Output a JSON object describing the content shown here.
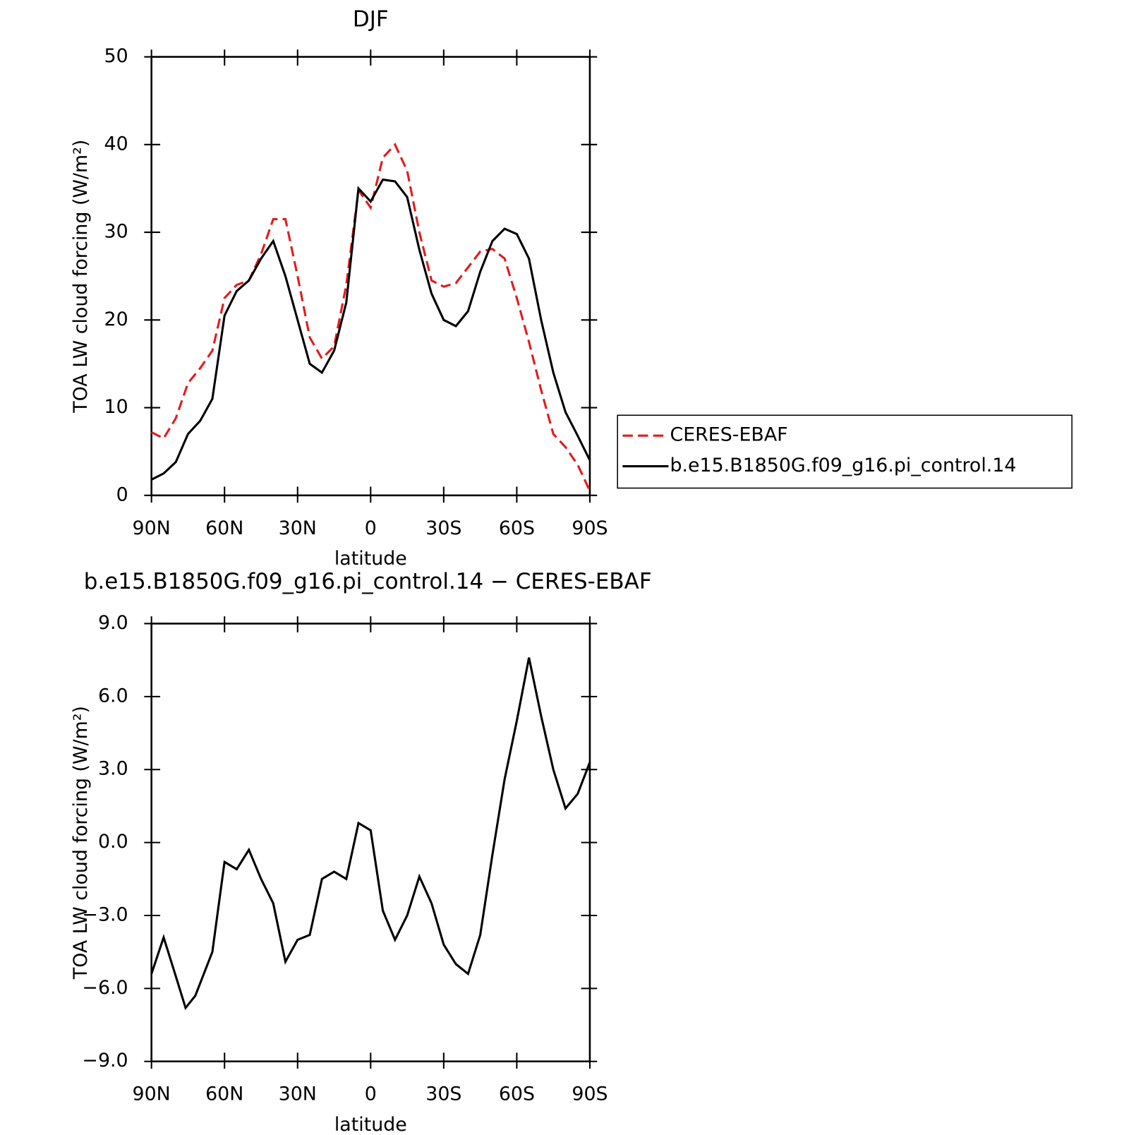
{
  "chart_data": [
    {
      "type": "line",
      "title": "DJF",
      "xlabel": "latitude",
      "ylabel": "TOA LW cloud forcing (W/m²)",
      "x": [
        90,
        85,
        80,
        75,
        70,
        65,
        60,
        55,
        50,
        45,
        40,
        35,
        30,
        25,
        20,
        15,
        10,
        5,
        0,
        -5,
        -10,
        -15,
        -20,
        -25,
        -30,
        -35,
        -40,
        -45,
        -50,
        -55,
        -60,
        -65,
        -70,
        -75,
        -80,
        -85,
        -90
      ],
      "series": [
        {
          "name": "CERES-EBAF",
          "color": "#e41a1c",
          "dash": true,
          "values": [
            7.2,
            6.5,
            8.8,
            12.8,
            14.5,
            16.5,
            22.5,
            24,
            24.5,
            27.5,
            31.5,
            31.5,
            25,
            18,
            15.6,
            17,
            24,
            34.8,
            32.8,
            38.5,
            40,
            37,
            30,
            24.5,
            23.8,
            24.2,
            26,
            27.8,
            28.1,
            27,
            22.5,
            17.5,
            12,
            7,
            5.5,
            3.5,
            0.5
          ]
        },
        {
          "name": "b.e15.B1850G.f09_g16.pi_control.14",
          "color": "#000000",
          "dash": false,
          "values": [
            1.8,
            2.5,
            3.8,
            7,
            8.5,
            11,
            20.5,
            23.3,
            24.5,
            27,
            29,
            25,
            20,
            15,
            14,
            16.5,
            22,
            35,
            33.5,
            36,
            35.8,
            34,
            28,
            23,
            20,
            19.3,
            21,
            25.5,
            29,
            30.4,
            29.8,
            27,
            20,
            14,
            9.5,
            6.8,
            4
          ]
        }
      ],
      "xlim": [
        90,
        -90
      ],
      "xticks": [
        {
          "value": 90,
          "label": "90N"
        },
        {
          "value": 60,
          "label": "60N"
        },
        {
          "value": 30,
          "label": "30N"
        },
        0,
        {
          "value": -30,
          "label": "30S"
        },
        {
          "value": -60,
          "label": "60S"
        },
        {
          "value": -90,
          "label": "90S"
        }
      ],
      "ylim": [
        0,
        50
      ],
      "yticks": [
        0,
        10,
        20,
        30,
        40,
        50
      ],
      "legend": "right"
    },
    {
      "type": "line",
      "title": "b.e15.B1850G.f09_g16.pi_control.14 − CERES-EBAF",
      "xlabel": "latitude",
      "ylabel": "TOA LW cloud forcing (W/m²)",
      "x": [
        90,
        85,
        80,
        76,
        72,
        65,
        60,
        55,
        50,
        45,
        40,
        35,
        30,
        25,
        20,
        15,
        10,
        5,
        0,
        -5,
        -10,
        -15,
        -20,
        -25,
        -30,
        -35,
        -40,
        -45,
        -50,
        -55,
        -60,
        -65,
        -70,
        -75,
        -80,
        -85,
        -90
      ],
      "series": [
        {
          "name": null,
          "color": "#000000",
          "dash": false,
          "values": [
            -5.4,
            -3.9,
            -5.5,
            -6.8,
            -6.3,
            -4.5,
            -0.8,
            -1.1,
            -0.3,
            -1.5,
            -2.5,
            -4.9,
            -4,
            -3.8,
            -1.5,
            -1.2,
            -1.5,
            0.8,
            0.5,
            -2.8,
            -4,
            -3,
            -1.4,
            -2.5,
            -4.2,
            -5,
            -5.4,
            -3.8,
            -0.5,
            2.6,
            5,
            7.6,
            5.2,
            3,
            1.4,
            2,
            3.3
          ]
        }
      ],
      "xlim": [
        90,
        -90
      ],
      "xticks": [
        {
          "value": 90,
          "label": "90N"
        },
        {
          "value": 60,
          "label": "60N"
        },
        {
          "value": 30,
          "label": "30N"
        },
        0,
        {
          "value": -30,
          "label": "30S"
        },
        {
          "value": -60,
          "label": "60S"
        },
        {
          "value": -90,
          "label": "90S"
        }
      ],
      "ylim": [
        -9,
        9
      ],
      "yticks": [
        {
          "value": -9,
          "label": "−9.0"
        },
        {
          "value": -6,
          "label": "−6.0"
        },
        {
          "value": -3,
          "label": "−3.0"
        },
        {
          "value": 0,
          "label": "0.0"
        },
        {
          "value": 3,
          "label": "3.0"
        },
        {
          "value": 6,
          "label": "6.0"
        },
        {
          "value": 9,
          "label": "9.0"
        }
      ]
    }
  ]
}
